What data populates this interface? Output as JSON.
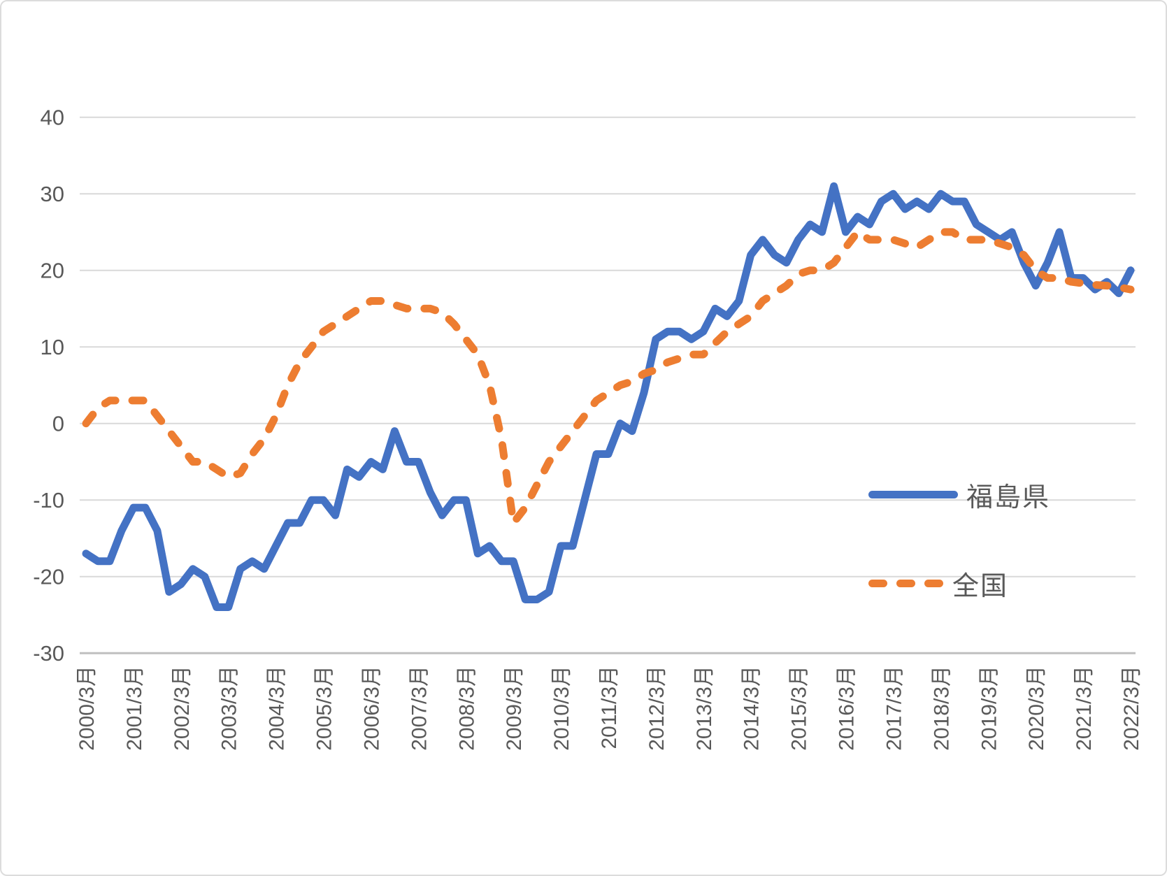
{
  "chart_data": {
    "type": "line",
    "title": "",
    "xlabel": "",
    "ylabel": "",
    "x_frequency": "quarterly",
    "x_tick_labels": [
      "2000/3月",
      "2001/3月",
      "2002/3月",
      "2003/3月",
      "2004/3月",
      "2005/3月",
      "2006/3月",
      "2007/3月",
      "2008/3月",
      "2009/3月",
      "2010/3月",
      "2011/3月",
      "2012/3月",
      "2013/3月",
      "2014/3月",
      "2015/3月",
      "2016/3月",
      "2017/3月",
      "2018/3月",
      "2019/3月",
      "2020/3月",
      "2021/3月",
      "2022/3月"
    ],
    "y_ticks": [
      40,
      30,
      20,
      10,
      0,
      -10,
      -20,
      -30
    ],
    "ylim": [
      -30,
      40
    ],
    "grid": true,
    "legend_position": "right-middle",
    "series": [
      {
        "name": "福島県",
        "style": "solid",
        "color": "#4472C4",
        "values": [
          -17,
          -18,
          -18,
          -14,
          -11,
          -11,
          -14,
          -22,
          -21,
          -19,
          -20,
          -24,
          -24,
          -19,
          -18,
          -19,
          -16,
          -13,
          -13,
          -10,
          -10,
          -12,
          -6,
          -7,
          -5,
          -6,
          -1,
          -5,
          -5,
          -9,
          -12,
          -10,
          -10,
          -17,
          -16,
          -18,
          -18,
          -23,
          -23,
          -22,
          -16,
          -16,
          -10,
          -4,
          -4,
          0,
          -1,
          4,
          11,
          12,
          12,
          11,
          12,
          15,
          14,
          16,
          22,
          24,
          22,
          21,
          24,
          26,
          25,
          31,
          25,
          27,
          26,
          29,
          30,
          28,
          29,
          28,
          30,
          29,
          29,
          26,
          25,
          24,
          25,
          21,
          18,
          21,
          25,
          19,
          19,
          17.5,
          18.5,
          17,
          20
        ]
      },
      {
        "name": "全国",
        "style": "dashed",
        "color": "#ED7D31",
        "values": [
          0,
          2,
          3,
          3,
          3,
          3,
          1,
          -1,
          -3,
          -5,
          -5,
          -6,
          -7,
          -6.5,
          -4,
          -2,
          1,
          5,
          8,
          10,
          12,
          13,
          14,
          15,
          16,
          16,
          15.5,
          15,
          15,
          15,
          14.5,
          13,
          11,
          9,
          5,
          -2,
          -13,
          -11,
          -8,
          -5,
          -3,
          -1,
          1,
          3,
          4,
          5,
          5.5,
          6.5,
          7,
          8,
          8.5,
          9,
          9,
          10.5,
          12,
          13,
          14,
          16,
          17,
          18,
          19.5,
          20,
          20,
          21,
          23,
          25,
          24,
          24,
          24,
          23.5,
          23,
          24,
          25,
          25,
          24,
          24,
          24,
          23.5,
          23,
          22,
          20,
          19,
          19,
          18.5,
          18.3,
          18.1,
          18,
          17.8,
          17.5
        ]
      }
    ],
    "colors": {
      "gridline": "#D9D9D9",
      "axis_line": "#BFBFBF",
      "tick_label": "#595959",
      "background": "#FFFFFF"
    }
  }
}
